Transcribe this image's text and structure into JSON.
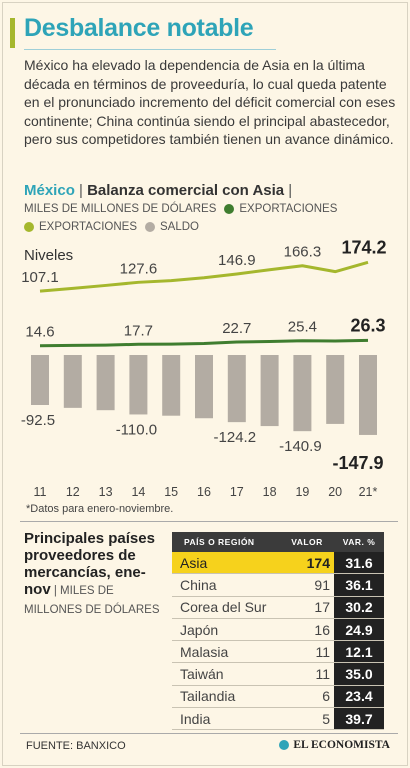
{
  "title": "Desbalance notable",
  "intro": "México ha elevado la dependencia de Asia en la última década en términos de proveeduría, lo cual queda patente en el pronunciado incremento del déficit comercial con eses continente; China continúa siendo el principal abastecedor, pero sus competidores también tienen un avance dinámico.",
  "subtitle": {
    "country": "México",
    "sep1": " | ",
    "name": "Balanza comercial con Asia",
    "sep2": " |"
  },
  "legend": {
    "units": "MILES DE MILLONES DE DÓLARES",
    "exports_dark": "EXPORTACIONES",
    "exports_light": "EXPORTACIONES",
    "saldo": "SALDO"
  },
  "colors": {
    "accent": "#2ea4b8",
    "light_green": "#a5b72d",
    "dark_green": "#3f7d2f",
    "saldo": "#b3aca3",
    "highlight": "#f6d21c"
  },
  "chart_data": {
    "type": "line+bar",
    "niveles_label": "Niveles",
    "categories": [
      "11",
      "12",
      "13",
      "14",
      "15",
      "16",
      "17",
      "18",
      "19",
      "20",
      "21*"
    ],
    "series": [
      {
        "name": "EXPORTACIONES",
        "kind": "line",
        "color": "#a5b72d",
        "values": [
          107.1,
          113.5,
          120.3,
          127.6,
          131.5,
          138.2,
          146.9,
          157.0,
          166.3,
          152.5,
          174.2
        ],
        "labels": [
          "107.1",
          "",
          "",
          "127.6",
          "",
          "",
          "146.9",
          "",
          "166.3",
          "",
          "174.2"
        ]
      },
      {
        "name": "EXPORTACIONES",
        "kind": "line",
        "color": "#3f7d2f",
        "values": [
          14.6,
          15.3,
          16.0,
          17.7,
          18.0,
          19.5,
          22.7,
          23.8,
          25.4,
          24.8,
          26.3
        ],
        "labels": [
          "14.6",
          "",
          "",
          "17.7",
          "",
          "",
          "22.7",
          "",
          "25.4",
          "",
          "26.3"
        ]
      },
      {
        "name": "SALDO",
        "kind": "bar",
        "color": "#b3aca3",
        "values": [
          -92.5,
          -97.8,
          -102.1,
          -110.0,
          -112.3,
          -117.0,
          -124.2,
          -131.5,
          -140.9,
          -127.5,
          -147.9
        ],
        "labels": [
          "-92.5",
          "",
          "",
          "-110.0",
          "",
          "",
          "-124.2",
          "",
          "-140.9",
          "",
          "-147.9"
        ]
      }
    ]
  },
  "note": "*Datos para enero-noviembre.",
  "table": {
    "title": "Principales países proveedores de mercancías, ene-nov",
    "units": " | MILES DE MILLONES DE DÓLARES",
    "headers": [
      "PAÍS O REGIÓN",
      "VALOR",
      "VAR. %"
    ],
    "rows": [
      {
        "name": "Asia",
        "value": "174",
        "var": "31.6"
      },
      {
        "name": "China",
        "value": "91",
        "var": "36.1"
      },
      {
        "name": "Corea del Sur",
        "value": "17",
        "var": "30.2"
      },
      {
        "name": "Japón",
        "value": "16",
        "var": "24.9"
      },
      {
        "name": "Malasia",
        "value": "11",
        "var": "12.1"
      },
      {
        "name": "Taiwán",
        "value": "11",
        "var": "35.0"
      },
      {
        "name": "Tailandia",
        "value": "6",
        "var": "23.4"
      },
      {
        "name": "India",
        "value": "5",
        "var": "39.7"
      }
    ]
  },
  "source": "FUENTE: BANXICO",
  "brand": "EL ECONOMISTA",
  "brand_icon": "globe-icon"
}
